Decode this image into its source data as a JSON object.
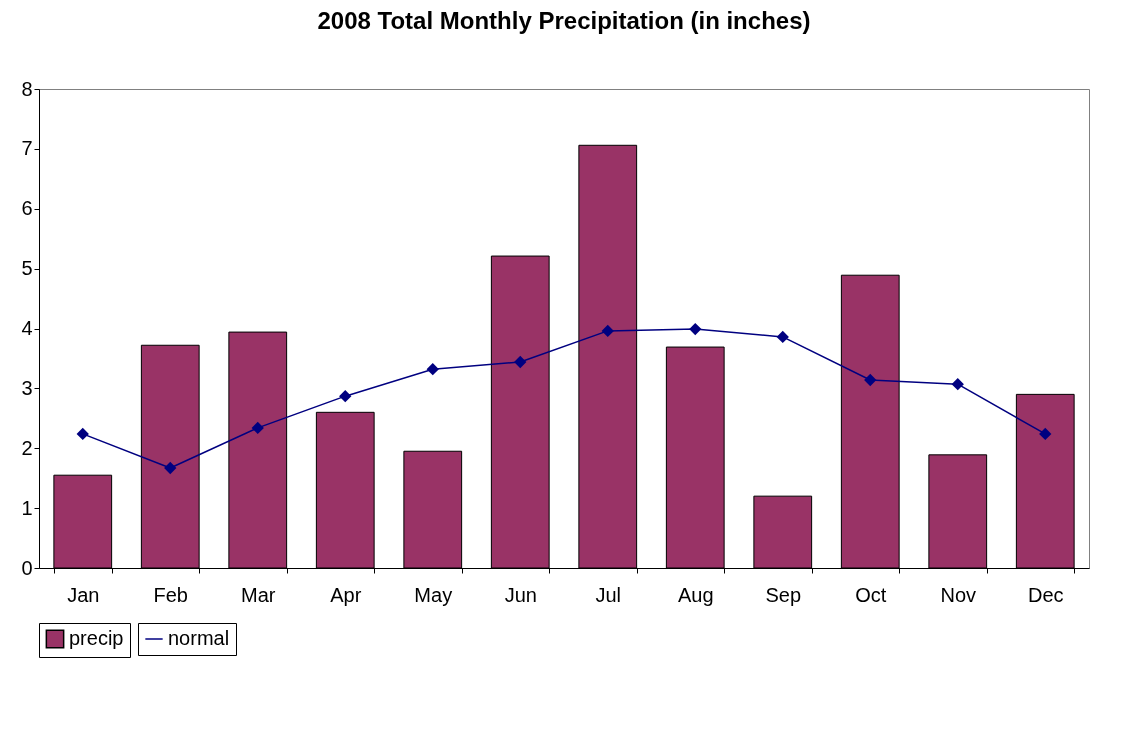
{
  "chart_data": {
    "type": "bar",
    "title": "2008 Total Monthly Precipitation (in inches)",
    "categories": [
      "Jan",
      "Feb",
      "Mar",
      "Apr",
      "May",
      "Jun",
      "Jul",
      "Aug",
      "Sep",
      "Oct",
      "Nov",
      "Dec"
    ],
    "series": [
      {
        "name": "precip",
        "color": "#993366",
        "values": [
          1.55,
          3.72,
          3.94,
          2.6,
          1.95,
          5.21,
          7.06,
          3.69,
          1.2,
          4.89,
          1.89,
          2.9
        ]
      },
      {
        "name": "normal",
        "type": "line",
        "color": "#000080",
        "marker": "diamond",
        "values": [
          2.24,
          1.67,
          2.34,
          2.87,
          3.32,
          3.44,
          3.96,
          3.99,
          3.86,
          3.14,
          3.07,
          2.24
        ]
      }
    ],
    "ylim": [
      0,
      8
    ],
    "yticks": [
      0,
      1,
      2,
      3,
      4,
      5,
      6,
      7,
      8
    ],
    "grid": false,
    "legend": "bottom"
  }
}
